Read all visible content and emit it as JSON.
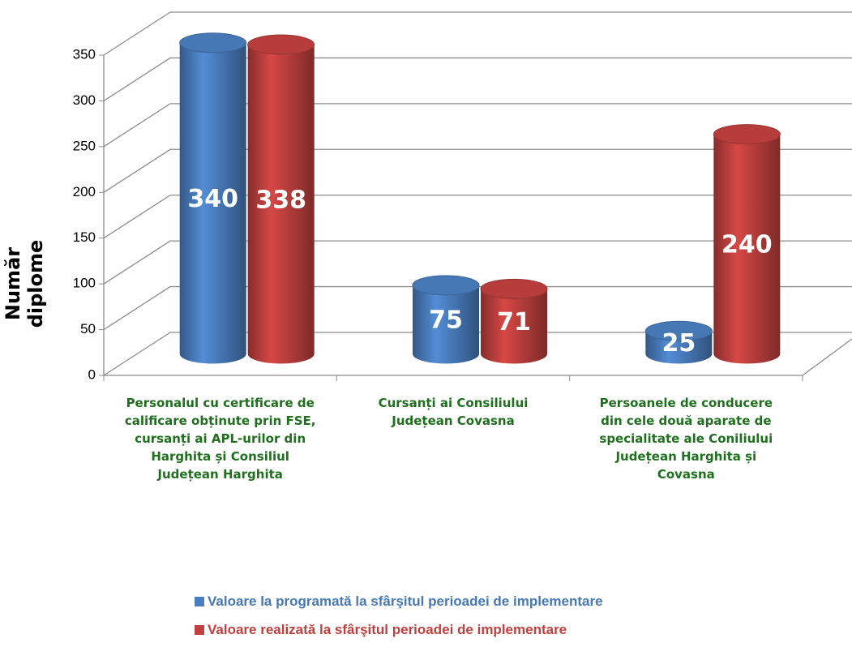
{
  "chart_data": {
    "type": "bar",
    "y_axis_label": "Număr diplome",
    "categories": [
      "Personalul  cu certificare de calificare obținute prin FSE, cursanți ai APL-urilor din Harghita și Consiliul Județean Harghita",
      "Cursanți ai Consiliului Județean Covasna",
      "Persoanele de conducere din cele două aparate de specialitate ale Coniliului Județean Harghita și Covasna"
    ],
    "series": [
      {
        "name": "Valoare la programată la sfârşitul perioadei de implementare",
        "color": "#4a7ebf",
        "values": [
          340,
          75,
          25
        ]
      },
      {
        "name": "Valoare realizată la sfârşitul perioadei de implementare",
        "color": "#c0403e",
        "values": [
          338,
          71,
          240
        ]
      }
    ],
    "ylim": [
      0,
      350
    ],
    "yticks": [
      0,
      50,
      100,
      150,
      200,
      250,
      300,
      350
    ],
    "grid": true
  }
}
